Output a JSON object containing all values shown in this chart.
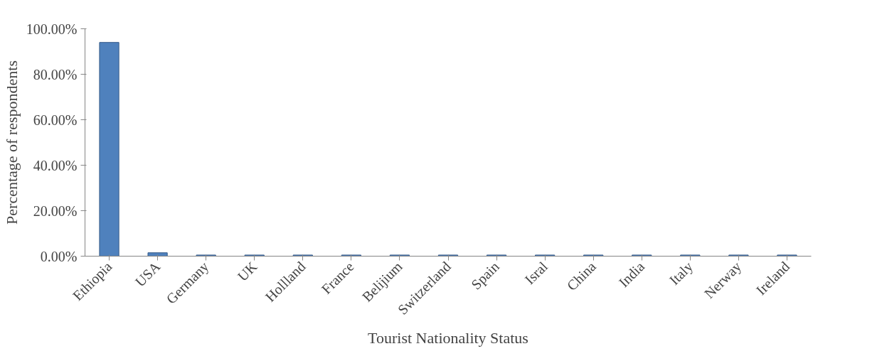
{
  "chart_data": {
    "type": "bar",
    "xlabel": "Tourist Nationality Status",
    "ylabel": "Percentage of respondents",
    "categories": [
      "Ethiopia",
      "USA",
      "Germany",
      "UK",
      "Hollland",
      "France",
      "Belijium",
      "Switzerland",
      "Spain",
      "Isral",
      "China",
      "India",
      "Italy",
      "Nerway",
      "Ireland"
    ],
    "values": [
      94,
      1.5,
      0.5,
      0.5,
      0.5,
      0.5,
      0.5,
      0.5,
      0.5,
      0.5,
      0.5,
      0.5,
      0.5,
      0.5,
      0.5
    ],
    "color": "#4f81bd",
    "ylim": [
      0,
      100
    ],
    "yticks": [
      {
        "value": 0,
        "label": "0.00%"
      },
      {
        "value": 20,
        "label": "20.00%"
      },
      {
        "value": 40,
        "label": "40.00%"
      },
      {
        "value": 60,
        "label": "60.00%"
      },
      {
        "value": 80,
        "label": "80.00%"
      },
      {
        "value": 100,
        "label": "100.00%"
      }
    ],
    "grid": false
  }
}
